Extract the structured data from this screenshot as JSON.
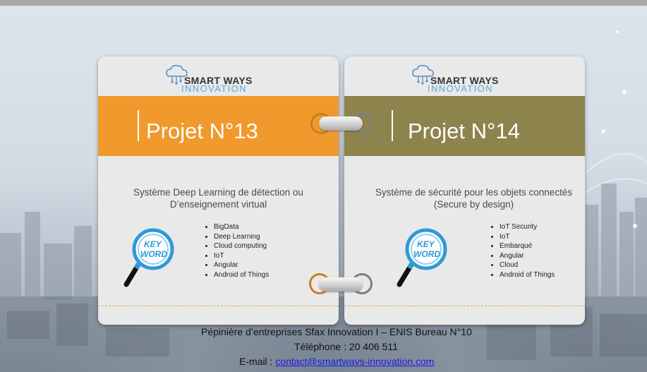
{
  "logo": {
    "line1": "SMART WAYS",
    "line2": "INNOVATION",
    "icon": "cloud-circuit-icon"
  },
  "projects": [
    {
      "title": "Projet N°13",
      "band_color": "#f0992c",
      "description_line1": "Système Deep Learning de détection ou",
      "description_line2": "D’enseignement virtual",
      "keyword_badge": [
        "KEY",
        "WORD"
      ],
      "keywords": [
        "BigData",
        "Deep Learning",
        "Cloud computing",
        "IoT",
        "Angular",
        "Android of Things"
      ]
    },
    {
      "title": "Projet N°14",
      "band_color": "#8d844d",
      "description_line1": "Système  de sécurité pour les objets connectés",
      "description_line2": "(Secure by design)",
      "keyword_badge": [
        "KEY",
        "WORD"
      ],
      "keywords": [
        "IoT Security",
        "IoT",
        "Embarqué",
        "Angular",
        "Cloud",
        "Android of Things"
      ]
    }
  ],
  "footer": {
    "address": "Pépinière d’entreprises Sfax Innovation I – ENIS Bureau N°10",
    "phone": "Téléphone : 20 406 511",
    "email_label": "E-mail : ",
    "email": "contact@smartways-innovation.com"
  },
  "colors": {
    "accent_orange": "#f0992c",
    "accent_olive": "#8d844d",
    "logo_blue": "#57a8dd"
  }
}
